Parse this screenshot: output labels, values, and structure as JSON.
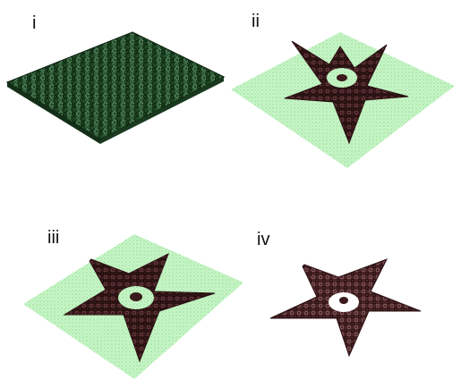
{
  "panels": [
    {
      "label": "i",
      "state": "dense-network-full-sheet"
    },
    {
      "label": "ii",
      "state": "star-pattern-on-green-sheet"
    },
    {
      "label": "iii",
      "state": "star-pattern-on-green-sheet"
    },
    {
      "label": "iv",
      "state": "isolated-star-no-sheet"
    }
  ],
  "colors": {
    "network_dark_green": "#1f4a26",
    "sheet_light_green": "#b8f0b8",
    "star_dark_maroon": "#3a1a1c",
    "star_light_maroon": "#6b3a3e",
    "background": "#ffffff"
  }
}
